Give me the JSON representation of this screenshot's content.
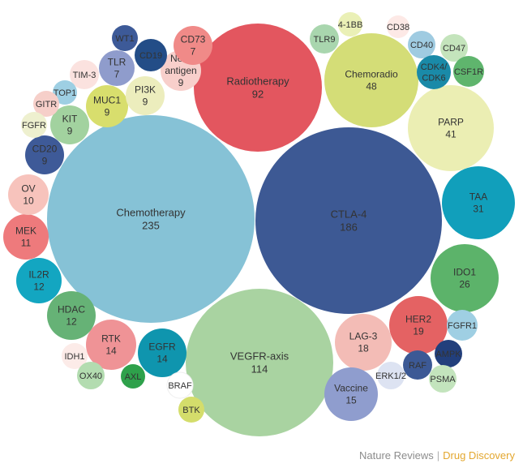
{
  "chart_data": {
    "type": "bubble",
    "items": [
      {
        "label": "Chemotherapy",
        "value": 235,
        "color": "#86c2d6"
      },
      {
        "label": "CTLA-4",
        "value": 186,
        "color": "#3d5994"
      },
      {
        "label": "VEGFR-axis",
        "value": 114,
        "color": "#a9d3a1"
      },
      {
        "label": "Radiotherapy",
        "value": 92,
        "color": "#e3565f"
      },
      {
        "label": "Chemoradio",
        "value": 48,
        "color": "#d4dd77"
      },
      {
        "label": "PARP",
        "value": 41,
        "color": "#ebeeb3"
      },
      {
        "label": "TAA",
        "value": 31,
        "color": "#119fbb"
      },
      {
        "label": "IDO1",
        "value": 26,
        "color": "#5cb36a"
      },
      {
        "label": "HER2",
        "value": 19,
        "color": "#e46263"
      },
      {
        "label": "LAG-3",
        "value": 18,
        "color": "#f3bcb6"
      },
      {
        "label": "Vaccine",
        "value": 15,
        "color": "#8f9dce"
      },
      {
        "label": "RTK",
        "value": 14,
        "color": "#ef9396"
      },
      {
        "label": "EGFR",
        "value": 14,
        "color": "#0f95ae"
      },
      {
        "label": "HDAC",
        "value": 12,
        "color": "#66b276"
      },
      {
        "label": "IL2R",
        "value": 12,
        "color": "#13a6c1"
      },
      {
        "label": "MEK",
        "value": 11,
        "color": "#ee7a7c"
      },
      {
        "label": "OV",
        "value": 10,
        "color": "#f7c3bc"
      },
      {
        "label": "CD20",
        "value": 9,
        "color": "#3e5a98"
      },
      {
        "label": "KIT",
        "value": 9,
        "color": "#a2d29f"
      },
      {
        "label": "MUC1",
        "value": 9,
        "color": "#d8de6d"
      },
      {
        "label": "PI3K",
        "value": 9,
        "color": "#ecedbd"
      },
      {
        "label": "Neo-antigen",
        "value": 9,
        "color": "#f8cfcb"
      },
      {
        "label": "TLR",
        "value": 7,
        "color": "#8f9ccc"
      },
      {
        "label": "CD73",
        "value": 7,
        "color": "#f08a88"
      },
      {
        "label": "WT1",
        "color": "#3d5a98"
      },
      {
        "label": "CD19",
        "color": "#234d87"
      },
      {
        "label": "TIM-3",
        "color": "#fbe2df"
      },
      {
        "label": "TOP1",
        "color": "#9ecfe3"
      },
      {
        "label": "GITR",
        "color": "#f6cfc9"
      },
      {
        "label": "FGFR",
        "color": "#eef0cf"
      },
      {
        "label": "TLR9",
        "color": "#a9d6ae"
      },
      {
        "label": "4-1BB",
        "color": "#eaf0b6"
      },
      {
        "label": "CD38",
        "color": "#fde9e6"
      },
      {
        "label": "CD40",
        "color": "#9fcbe1"
      },
      {
        "label": "CD47",
        "color": "#c4e4bc"
      },
      {
        "label": "CDK4/CDK6",
        "color": "#1a8aa8"
      },
      {
        "label": "CSF1R",
        "color": "#5fb56d"
      },
      {
        "label": "FGFR1",
        "color": "#9fcfe3"
      },
      {
        "label": "AMPK",
        "color": "#223f7c"
      },
      {
        "label": "RAF",
        "color": "#3c5995"
      },
      {
        "label": "PSMA",
        "color": "#c3e4bd"
      },
      {
        "label": "ERK1/2",
        "color": "#dde3f2"
      },
      {
        "label": "IDH1",
        "color": "#fcebe8"
      },
      {
        "label": "OX40",
        "color": "#b3dcb0"
      },
      {
        "label": "AXL",
        "color": "#2ea14b"
      },
      {
        "label": "BRAF",
        "color": "#ffffff"
      },
      {
        "label": "BTK",
        "color": "#d4dd6b"
      }
    ]
  },
  "credit": {
    "publisher": "Nature Reviews",
    "separator": "|",
    "journal": "Drug Discovery"
  }
}
